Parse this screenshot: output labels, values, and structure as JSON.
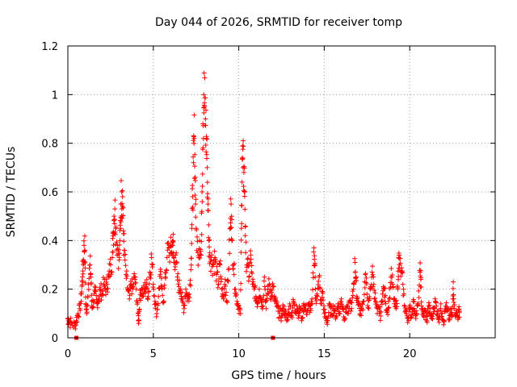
{
  "chart_data": {
    "type": "scatter",
    "title": "Day 044 of 2026, SRMTID for receiver tomp",
    "xlabel": "GPS time / hours",
    "ylabel": "SRMTID / TECUs",
    "xlim": [
      0,
      25
    ],
    "ylim": [
      0,
      1.2
    ],
    "xticks": [
      0,
      5,
      10,
      15,
      20
    ],
    "xtick_labels": [
      "0",
      "5",
      "10",
      "15",
      "20"
    ],
    "yticks": [
      0,
      0.2,
      0.4,
      0.6,
      0.8,
      1.0,
      1.2
    ],
    "ytick_labels": [
      "0",
      "0.2",
      "0.4",
      "0.6",
      "0.8",
      "1",
      "1.2"
    ],
    "grid": true,
    "marker": "plus",
    "color": "#ff0000",
    "series": [
      {
        "name": "SRMTID",
        "points": [
          [
            0.0,
            0.08
          ],
          [
            0.05,
            0.07
          ],
          [
            0.2,
            0.06
          ],
          [
            0.4,
            0.05
          ],
          [
            0.5,
            0.07
          ],
          [
            0.6,
            0.1
          ],
          [
            0.7,
            0.12
          ],
          [
            0.8,
            0.18
          ],
          [
            0.85,
            0.25
          ],
          [
            0.9,
            0.3
          ],
          [
            0.95,
            0.38
          ],
          [
            1.0,
            0.36
          ],
          [
            1.05,
            0.14
          ],
          [
            1.1,
            0.1
          ],
          [
            1.2,
            0.22
          ],
          [
            1.3,
            0.3
          ],
          [
            1.35,
            0.25
          ],
          [
            1.4,
            0.13
          ],
          [
            1.5,
            0.15
          ],
          [
            1.6,
            0.19
          ],
          [
            1.7,
            0.14
          ],
          [
            1.8,
            0.16
          ],
          [
            1.9,
            0.2
          ],
          [
            2.0,
            0.18
          ],
          [
            2.1,
            0.22
          ],
          [
            2.2,
            0.2
          ],
          [
            2.3,
            0.22
          ],
          [
            2.4,
            0.25
          ],
          [
            2.5,
            0.3
          ],
          [
            2.6,
            0.33
          ],
          [
            2.65,
            0.42
          ],
          [
            2.7,
            0.5
          ],
          [
            2.75,
            0.53
          ],
          [
            2.8,
            0.45
          ],
          [
            2.9,
            0.38
          ],
          [
            3.0,
            0.32
          ],
          [
            3.05,
            0.4
          ],
          [
            3.1,
            0.55
          ],
          [
            3.15,
            0.6
          ],
          [
            3.2,
            0.58
          ],
          [
            3.25,
            0.44
          ],
          [
            3.3,
            0.36
          ],
          [
            3.4,
            0.26
          ],
          [
            3.5,
            0.2
          ],
          [
            3.6,
            0.16
          ],
          [
            3.7,
            0.22
          ],
          [
            3.8,
            0.2
          ],
          [
            3.9,
            0.25
          ],
          [
            4.0,
            0.2
          ],
          [
            4.1,
            0.1
          ],
          [
            4.15,
            0.07
          ],
          [
            4.2,
            0.16
          ],
          [
            4.3,
            0.2
          ],
          [
            4.4,
            0.18
          ],
          [
            4.5,
            0.2
          ],
          [
            4.6,
            0.22
          ],
          [
            4.7,
            0.17
          ],
          [
            4.8,
            0.27
          ],
          [
            4.9,
            0.33
          ],
          [
            5.0,
            0.22
          ],
          [
            5.1,
            0.15
          ],
          [
            5.2,
            0.1
          ],
          [
            5.3,
            0.17
          ],
          [
            5.4,
            0.26
          ],
          [
            5.5,
            0.2
          ],
          [
            5.6,
            0.15
          ],
          [
            5.7,
            0.25
          ],
          [
            5.8,
            0.33
          ],
          [
            5.9,
            0.37
          ],
          [
            6.0,
            0.35
          ],
          [
            6.1,
            0.38
          ],
          [
            6.15,
            0.4
          ],
          [
            6.2,
            0.31
          ],
          [
            6.3,
            0.34
          ],
          [
            6.4,
            0.25
          ],
          [
            6.5,
            0.21
          ],
          [
            6.6,
            0.2
          ],
          [
            6.7,
            0.15
          ],
          [
            6.8,
            0.12
          ],
          [
            6.9,
            0.2
          ],
          [
            7.0,
            0.16
          ],
          [
            7.1,
            0.18
          ],
          [
            7.2,
            0.28
          ],
          [
            7.25,
            0.45
          ],
          [
            7.3,
            0.58
          ],
          [
            7.35,
            0.72
          ],
          [
            7.4,
            0.82
          ],
          [
            7.45,
            0.66
          ],
          [
            7.5,
            0.45
          ],
          [
            7.6,
            0.35
          ],
          [
            7.7,
            0.4
          ],
          [
            7.8,
            0.34
          ],
          [
            7.85,
            0.6
          ],
          [
            7.9,
            0.88
          ],
          [
            7.95,
            1.0
          ],
          [
            8.0,
            0.95
          ],
          [
            8.05,
            0.9
          ],
          [
            8.1,
            0.82
          ],
          [
            8.15,
            0.7
          ],
          [
            8.2,
            0.55
          ],
          [
            8.25,
            0.4
          ],
          [
            8.3,
            0.35
          ],
          [
            8.4,
            0.32
          ],
          [
            8.5,
            0.3
          ],
          [
            8.6,
            0.33
          ],
          [
            8.7,
            0.26
          ],
          [
            8.8,
            0.22
          ],
          [
            8.9,
            0.3
          ],
          [
            9.0,
            0.2
          ],
          [
            9.1,
            0.16
          ],
          [
            9.2,
            0.24
          ],
          [
            9.3,
            0.15
          ],
          [
            9.4,
            0.28
          ],
          [
            9.5,
            0.45
          ],
          [
            9.55,
            0.55
          ],
          [
            9.6,
            0.4
          ],
          [
            9.7,
            0.3
          ],
          [
            9.8,
            0.2
          ],
          [
            9.9,
            0.15
          ],
          [
            10.0,
            0.13
          ],
          [
            10.1,
            0.1
          ],
          [
            10.15,
            0.45
          ],
          [
            10.2,
            0.74
          ],
          [
            10.25,
            0.7
          ],
          [
            10.3,
            0.68
          ],
          [
            10.35,
            0.6
          ],
          [
            10.4,
            0.35
          ],
          [
            10.5,
            0.3
          ],
          [
            10.6,
            0.25
          ],
          [
            10.7,
            0.34
          ],
          [
            10.8,
            0.22
          ],
          [
            10.9,
            0.2
          ],
          [
            11.0,
            0.17
          ],
          [
            11.1,
            0.14
          ],
          [
            11.2,
            0.2
          ],
          [
            11.3,
            0.16
          ],
          [
            11.4,
            0.13
          ],
          [
            11.5,
            0.25
          ],
          [
            11.6,
            0.12
          ],
          [
            11.7,
            0.2
          ],
          [
            11.8,
            0.22
          ],
          [
            11.9,
            0.17
          ],
          [
            12.0,
            0.21
          ],
          [
            12.1,
            0.15
          ],
          [
            12.2,
            0.14
          ],
          [
            12.3,
            0.11
          ],
          [
            12.4,
            0.1
          ],
          [
            12.5,
            0.09
          ],
          [
            12.6,
            0.12
          ],
          [
            12.7,
            0.11
          ],
          [
            12.8,
            0.07
          ],
          [
            12.9,
            0.1
          ],
          [
            13.0,
            0.13
          ],
          [
            13.1,
            0.09
          ],
          [
            13.2,
            0.15
          ],
          [
            13.3,
            0.11
          ],
          [
            13.4,
            0.13
          ],
          [
            13.5,
            0.1
          ],
          [
            13.6,
            0.12
          ],
          [
            13.7,
            0.08
          ],
          [
            13.8,
            0.14
          ],
          [
            13.9,
            0.12
          ],
          [
            14.0,
            0.11
          ],
          [
            14.1,
            0.13
          ],
          [
            14.2,
            0.12
          ],
          [
            14.3,
            0.14
          ],
          [
            14.4,
            0.37
          ],
          [
            14.45,
            0.3
          ],
          [
            14.5,
            0.16
          ],
          [
            14.6,
            0.17
          ],
          [
            14.7,
            0.25
          ],
          [
            14.8,
            0.14
          ],
          [
            14.9,
            0.19
          ],
          [
            15.0,
            0.1
          ],
          [
            15.1,
            0.08
          ],
          [
            15.2,
            0.07
          ],
          [
            15.3,
            0.13
          ],
          [
            15.4,
            0.1
          ],
          [
            15.5,
            0.12
          ],
          [
            15.6,
            0.11
          ],
          [
            15.7,
            0.09
          ],
          [
            15.8,
            0.14
          ],
          [
            15.9,
            0.1
          ],
          [
            16.0,
            0.16
          ],
          [
            16.1,
            0.12
          ],
          [
            16.2,
            0.08
          ],
          [
            16.3,
            0.13
          ],
          [
            16.4,
            0.1
          ],
          [
            16.5,
            0.15
          ],
          [
            16.6,
            0.12
          ],
          [
            16.7,
            0.2
          ],
          [
            16.8,
            0.31
          ],
          [
            16.85,
            0.25
          ],
          [
            16.9,
            0.17
          ],
          [
            17.0,
            0.15
          ],
          [
            17.1,
            0.1
          ],
          [
            17.2,
            0.12
          ],
          [
            17.3,
            0.15
          ],
          [
            17.4,
            0.26
          ],
          [
            17.5,
            0.18
          ],
          [
            17.6,
            0.12
          ],
          [
            17.7,
            0.2
          ],
          [
            17.8,
            0.27
          ],
          [
            17.9,
            0.22
          ],
          [
            18.0,
            0.15
          ],
          [
            18.1,
            0.1
          ],
          [
            18.2,
            0.12
          ],
          [
            18.3,
            0.09
          ],
          [
            18.4,
            0.18
          ],
          [
            18.5,
            0.2
          ],
          [
            18.6,
            0.14
          ],
          [
            18.7,
            0.11
          ],
          [
            18.8,
            0.16
          ],
          [
            18.9,
            0.25
          ],
          [
            19.0,
            0.22
          ],
          [
            19.1,
            0.14
          ],
          [
            19.2,
            0.12
          ],
          [
            19.3,
            0.2
          ],
          [
            19.35,
            0.33
          ],
          [
            19.4,
            0.3
          ],
          [
            19.5,
            0.27
          ],
          [
            19.6,
            0.22
          ],
          [
            19.7,
            0.13
          ],
          [
            19.8,
            0.1
          ],
          [
            19.9,
            0.08
          ],
          [
            20.0,
            0.12
          ],
          [
            20.1,
            0.09
          ],
          [
            20.2,
            0.15
          ],
          [
            20.3,
            0.11
          ],
          [
            20.4,
            0.1
          ],
          [
            20.5,
            0.14
          ],
          [
            20.6,
            0.27
          ],
          [
            20.65,
            0.24
          ],
          [
            20.7,
            0.12
          ],
          [
            20.8,
            0.09
          ],
          [
            20.9,
            0.11
          ],
          [
            21.0,
            0.07
          ],
          [
            21.1,
            0.13
          ],
          [
            21.2,
            0.1
          ],
          [
            21.3,
            0.08
          ],
          [
            21.4,
            0.12
          ],
          [
            21.5,
            0.15
          ],
          [
            21.6,
            0.11
          ],
          [
            21.7,
            0.08
          ],
          [
            21.8,
            0.12
          ],
          [
            21.9,
            0.1
          ],
          [
            22.0,
            0.07
          ],
          [
            22.1,
            0.13
          ],
          [
            22.2,
            0.11
          ],
          [
            22.3,
            0.08
          ],
          [
            22.4,
            0.1
          ],
          [
            22.5,
            0.09
          ],
          [
            22.55,
            0.23
          ],
          [
            22.6,
            0.12
          ],
          [
            22.7,
            0.1
          ],
          [
            22.8,
            0.09
          ],
          [
            22.9,
            0.11
          ]
        ]
      }
    ],
    "square_markers": [
      [
        0.5,
        0.0
      ],
      [
        12.0,
        0.0
      ]
    ]
  }
}
